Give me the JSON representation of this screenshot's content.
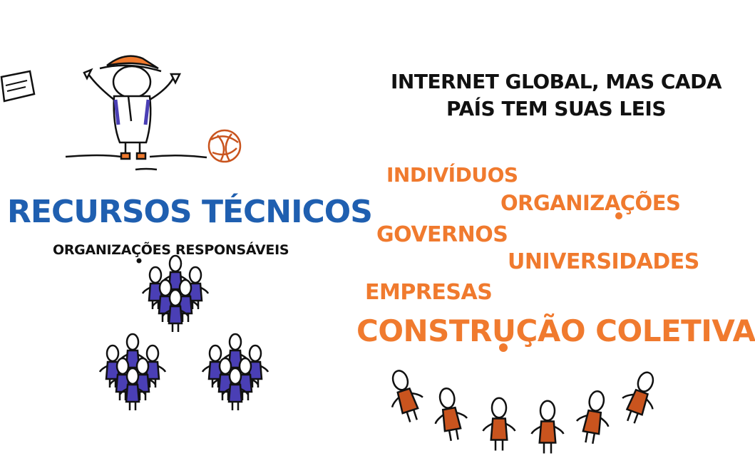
{
  "left": {
    "title": "RECURSOS TÉCNICOS",
    "subtitle": "ORGANIZAÇÕES RESPONSÁVEIS"
  },
  "right": {
    "heading_line1": "INTERNET GLOBAL, MAS CADA",
    "heading_line2": "PAÍS TEM SUAS LEIS",
    "words": [
      "INDIVÍDUOS",
      "ORGANIZAÇÕES",
      "GOVERNOS",
      "UNIVERSIDADES",
      "EMPRESAS"
    ],
    "collective": "CONSTRUÇÃO COLETIVA"
  },
  "colors": {
    "blue": "#1f5fb0",
    "orange": "#f07a2e",
    "figure_blue": "#4a3fb5",
    "figure_orange": "#c9541e"
  }
}
